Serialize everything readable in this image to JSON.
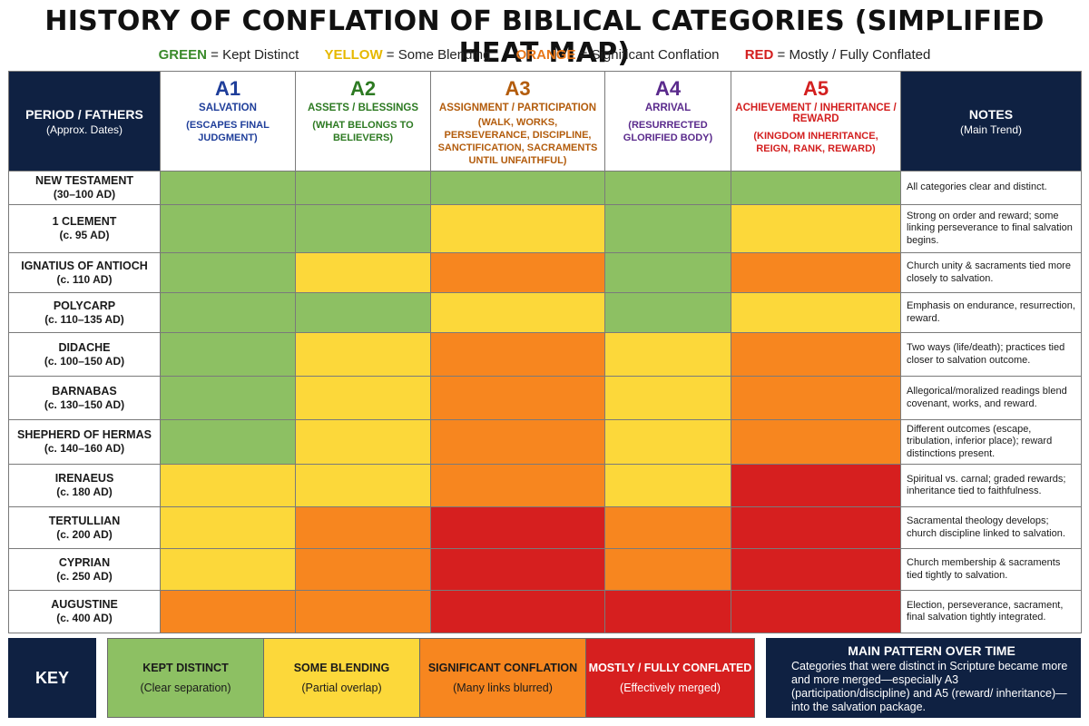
{
  "title": "HISTORY OF CONFLATION OF BIBLICAL CATEGORIES (SIMPLIFIED HEAT MAP)",
  "legend": [
    {
      "word": "GREEN",
      "text": "= Kept Distinct",
      "color": "#3a8a2a"
    },
    {
      "word": "YELLOW",
      "text": "= Some Blending",
      "color": "#e6b800"
    },
    {
      "word": "ORANGE",
      "text": "= Significant Conflation",
      "color": "#e8771a"
    },
    {
      "word": "RED",
      "text": "= Mostly / Fully Conflated",
      "color": "#d31f1f"
    }
  ],
  "header": {
    "period_main": "PERIOD / FATHERS",
    "period_sub": "(Approx. Dates)",
    "notes_main": "NOTES",
    "notes_sub": "(Main Trend)"
  },
  "palette": {
    "green": "#8dc063",
    "yellow": "#fcd83a",
    "orange": "#f7861f",
    "red": "#d61f1f",
    "navy": "#0f2142"
  },
  "chart_data": {
    "type": "heatmap",
    "title": "HISTORY OF CONFLATION OF BIBLICAL CATEGORIES (SIMPLIFIED HEAT MAP)",
    "levels": [
      "green",
      "yellow",
      "orange",
      "red"
    ],
    "columns": [
      {
        "code": "A1",
        "name": "SALVATION",
        "desc": "(ESCAPES FINAL JUDGMENT)",
        "color": "#1f3e9a"
      },
      {
        "code": "A2",
        "name": "ASSETS / BLESSINGS",
        "desc": "(WHAT BELONGS TO BELIEVERS)",
        "color": "#2d7a22"
      },
      {
        "code": "A3",
        "name": "ASSIGNMENT / PARTICIPATION",
        "desc": "(WALK, WORKS, PERSEVERANCE, DISCIPLINE, SANCTIFICATION, SACRAMENTS UNTIL UNFAITHFUL)",
        "color": "#b35c0c"
      },
      {
        "code": "A4",
        "name": "ARRIVAL",
        "desc": "(RESURRECTED GLORIFIED BODY)",
        "color": "#5a2a8c"
      },
      {
        "code": "A5",
        "name": "ACHIEVEMENT / INHERITANCE / REWARD",
        "desc": "(KINGDOM INHERITANCE, REIGN, RANK, REWARD)",
        "color": "#d31f1f"
      }
    ],
    "rows": [
      {
        "name": "NEW TESTAMENT",
        "date": "(30–100 AD)",
        "cells": [
          "green",
          "green",
          "green",
          "green",
          "green"
        ],
        "note": "All categories clear and distinct."
      },
      {
        "name": "1 CLEMENT",
        "date": "(c. 95 AD)",
        "cells": [
          "green",
          "green",
          "yellow",
          "green",
          "yellow"
        ],
        "note": "Strong on order and reward; some linking perseverance to final salvation begins."
      },
      {
        "name": "IGNATIUS OF ANTIOCH",
        "date": "(c. 110 AD)",
        "cells": [
          "green",
          "yellow",
          "orange",
          "green",
          "orange"
        ],
        "note": "Church unity & sacraments tied more closely to salvation."
      },
      {
        "name": "POLYCARP",
        "date": "(c. 110–135 AD)",
        "cells": [
          "green",
          "green",
          "yellow",
          "green",
          "yellow"
        ],
        "note": "Emphasis on endurance, resurrection, reward."
      },
      {
        "name": "DIDACHE",
        "date": "(c. 100–150 AD)",
        "cells": [
          "green",
          "yellow",
          "orange",
          "yellow",
          "orange"
        ],
        "note": "Two ways (life/death); practices tied closer to salvation outcome."
      },
      {
        "name": "BARNABAS",
        "date": "(c. 130–150 AD)",
        "cells": [
          "green",
          "yellow",
          "orange",
          "yellow",
          "orange"
        ],
        "note": "Allegorical/moralized readings blend covenant, works, and reward."
      },
      {
        "name": "SHEPHERD OF HERMAS",
        "date": "(c. 140–160 AD)",
        "cells": [
          "green",
          "yellow",
          "orange",
          "yellow",
          "orange"
        ],
        "note": "Different outcomes (escape, tribulation, inferior place); reward distinctions present."
      },
      {
        "name": "IRENAEUS",
        "date": "(c. 180 AD)",
        "cells": [
          "yellow",
          "yellow",
          "orange",
          "yellow",
          "red"
        ],
        "note": "Spiritual vs. carnal; graded rewards; inheritance tied to faithfulness."
      },
      {
        "name": "TERTULLIAN",
        "date": "(c. 200 AD)",
        "cells": [
          "yellow",
          "orange",
          "red",
          "orange",
          "red"
        ],
        "note": "Sacramental theology develops; church discipline linked to salvation."
      },
      {
        "name": "CYPRIAN",
        "date": "(c. 250 AD)",
        "cells": [
          "yellow",
          "orange",
          "red",
          "orange",
          "red"
        ],
        "note": "Church membership & sacraments tied tightly to salvation."
      },
      {
        "name": "AUGUSTINE",
        "date": "(c. 400 AD)",
        "cells": [
          "orange",
          "orange",
          "red",
          "red",
          "red"
        ],
        "note": "Election, perseverance, sacrament, final salvation tightly integrated."
      }
    ]
  },
  "key": {
    "label": "KEY",
    "items": [
      {
        "main": "KEPT DISTINCT",
        "sub": "(Clear separation)",
        "color": "#8dc063"
      },
      {
        "main": "SOME BLENDING",
        "sub": "(Partial overlap)",
        "color": "#fcd83a"
      },
      {
        "main": "SIGNIFICANT CONFLATION",
        "sub": "(Many links blurred)",
        "color": "#f7861f"
      },
      {
        "main": "MOSTLY / FULLY CONFLATED",
        "sub": "(Effectively merged)",
        "color": "#d61f1f"
      }
    ]
  },
  "pattern": {
    "title": "MAIN PATTERN OVER TIME",
    "body": "Categories that were distinct in Scripture became more and more merged—especially A3 (participation/discipline) and A5 (reward/ inheritance)—into the salvation package."
  }
}
